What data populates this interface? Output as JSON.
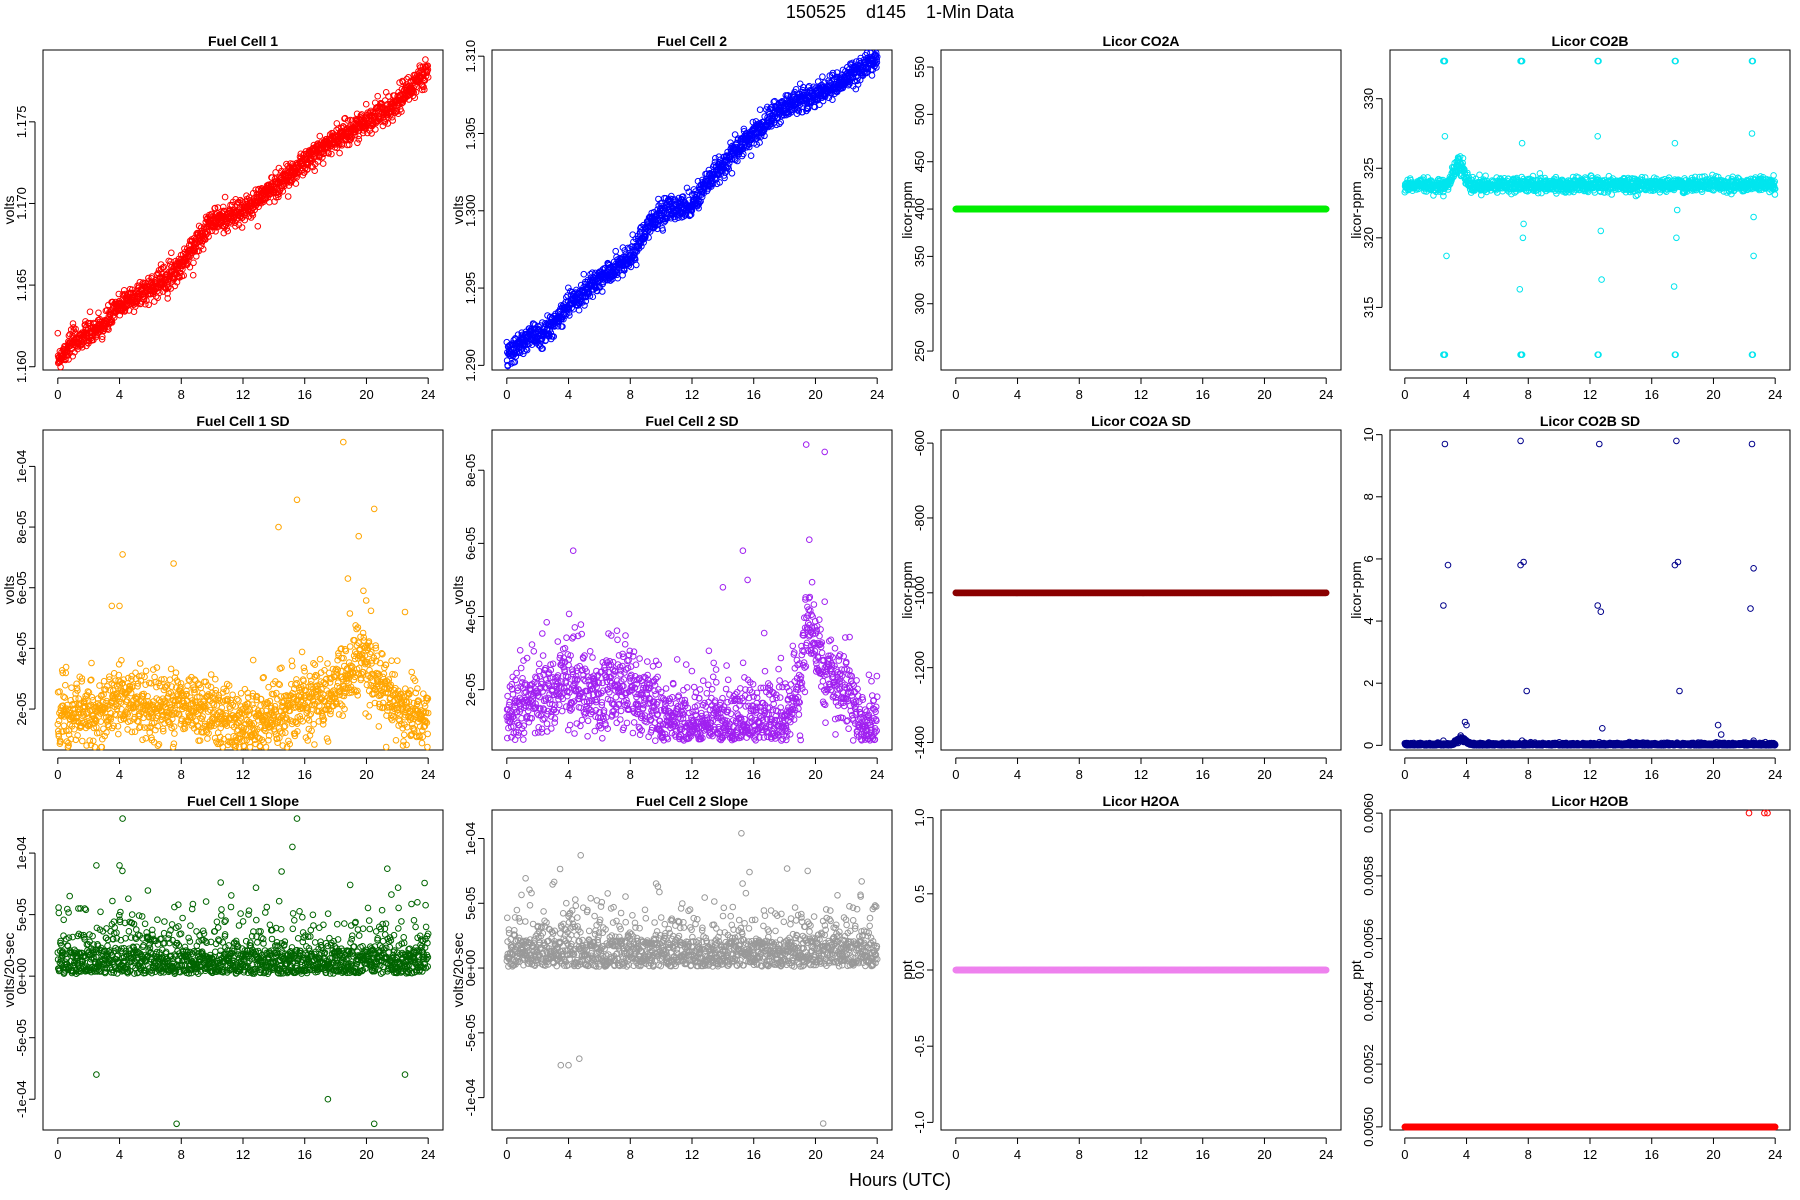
{
  "figure": {
    "title": "150525    d145    1-Min Data",
    "xlabel": "Hours (UTC)"
  },
  "chart_data": [
    {
      "type": "scatter",
      "title": "Fuel Cell 1",
      "ylabel": "volts",
      "color": "#ff0000",
      "xlim": [
        0,
        24
      ],
      "ylim": [
        1.1598,
        1.1794
      ],
      "xticks": [
        0,
        4,
        8,
        12,
        16,
        20,
        24
      ],
      "yticks": [
        1.16,
        1.165,
        1.17,
        1.175
      ],
      "ytick_labels": [
        "1.160",
        "1.165",
        "1.170",
        "1.175"
      ],
      "series": [
        {
          "pattern": "trend",
          "x": [
            0,
            1,
            3,
            4,
            6,
            8,
            9.8,
            12,
            14,
            16,
            18,
            20,
            22,
            24
          ],
          "y": [
            1.1605,
            1.1615,
            1.1625,
            1.1638,
            1.1648,
            1.1662,
            1.1688,
            1.1695,
            1.171,
            1.1725,
            1.174,
            1.175,
            1.1762,
            1.1782
          ],
          "noise": 0.0004,
          "n": 1440
        }
      ]
    },
    {
      "type": "scatter",
      "title": "Fuel Cell 2",
      "ylabel": "volts",
      "color": "#0000ff",
      "xlim": [
        0,
        24
      ],
      "ylim": [
        1.2897,
        1.3104
      ],
      "xticks": [
        0,
        4,
        8,
        12,
        16,
        20,
        24
      ],
      "yticks": [
        1.29,
        1.295,
        1.3,
        1.305,
        1.31
      ],
      "ytick_labels": [
        "1.290",
        "1.295",
        "1.300",
        "1.305",
        "1.310"
      ],
      "series": [
        {
          "pattern": "trend",
          "x": [
            0,
            1,
            3,
            4,
            6,
            8,
            9.8,
            12,
            14,
            16,
            18,
            20,
            22,
            24
          ],
          "y": [
            1.2905,
            1.2915,
            1.2925,
            1.294,
            1.2955,
            1.297,
            1.2998,
            1.3005,
            1.303,
            1.305,
            1.3068,
            1.3075,
            1.3085,
            1.3098
          ],
          "noise": 0.0004,
          "n": 1440
        }
      ]
    },
    {
      "type": "scatter",
      "title": "Licor CO2A",
      "ylabel": "licor-ppm",
      "color": "#00ee00",
      "xlim": [
        0,
        24
      ],
      "ylim": [
        230,
        568
      ],
      "xticks": [
        0,
        4,
        8,
        12,
        16,
        20,
        24
      ],
      "yticks": [
        250,
        300,
        350,
        400,
        450,
        500,
        550
      ],
      "ytick_labels": [
        "250",
        "300",
        "350",
        "400",
        "450",
        "500",
        "550"
      ],
      "series": [
        {
          "pattern": "constant",
          "value": 400,
          "n": 1440
        }
      ]
    },
    {
      "type": "scatter",
      "title": "Licor CO2B",
      "ylabel": "licor-ppm",
      "color": "#00e5ee",
      "xlim": [
        0,
        24
      ],
      "ylim": [
        310.5,
        333.5
      ],
      "xticks": [
        0,
        4,
        8,
        12,
        16,
        20,
        24
      ],
      "yticks": [
        315,
        320,
        325,
        330
      ],
      "ytick_labels": [
        "315",
        "320",
        "325",
        "330"
      ],
      "series": [
        {
          "pattern": "baseline_outliers",
          "base": 323.8,
          "noise": 0.25,
          "n": 1440,
          "bump": {
            "from": 2.8,
            "to": 4.2,
            "peak": 325.8
          },
          "outliers": [
            [
              2.5,
              332.7
            ],
            [
              2.55,
              332.7
            ],
            [
              2.6,
              332.7
            ],
            [
              2.5,
              311.6
            ],
            [
              2.55,
              311.6
            ],
            [
              2.6,
              311.6
            ],
            [
              2.6,
              327.3
            ],
            [
              2.7,
              318.7
            ],
            [
              2.5,
              323.0
            ],
            [
              7.5,
              332.7
            ],
            [
              7.55,
              332.7
            ],
            [
              7.6,
              332.7
            ],
            [
              7.5,
              311.6
            ],
            [
              7.55,
              311.6
            ],
            [
              7.6,
              311.6
            ],
            [
              7.6,
              326.8
            ],
            [
              7.65,
              320.0
            ],
            [
              7.7,
              321.0
            ],
            [
              7.45,
              316.3
            ],
            [
              12.5,
              332.7
            ],
            [
              12.55,
              332.7
            ],
            [
              12.5,
              311.6
            ],
            [
              12.55,
              311.6
            ],
            [
              12.5,
              327.3
            ],
            [
              12.7,
              320.5
            ],
            [
              12.75,
              317.0
            ],
            [
              17.5,
              332.7
            ],
            [
              17.55,
              332.7
            ],
            [
              17.5,
              311.6
            ],
            [
              17.55,
              311.6
            ],
            [
              17.5,
              326.8
            ],
            [
              17.6,
              320.0
            ],
            [
              17.45,
              316.5
            ],
            [
              17.65,
              322.0
            ],
            [
              22.5,
              332.7
            ],
            [
              22.55,
              332.7
            ],
            [
              22.5,
              311.6
            ],
            [
              22.55,
              311.6
            ],
            [
              22.5,
              327.5
            ],
            [
              22.6,
              318.7
            ],
            [
              22.6,
              321.5
            ]
          ]
        }
      ]
    },
    {
      "type": "scatter",
      "title": "Fuel Cell 1 SD",
      "ylabel": "volts",
      "color": "#ffa500",
      "xlim": [
        0,
        24
      ],
      "ylim": [
        6.5e-06,
        0.000112
      ],
      "xticks": [
        0,
        4,
        8,
        12,
        16,
        20,
        24
      ],
      "yticks": [
        2e-05,
        4e-05,
        6e-05,
        8e-05,
        0.0001
      ],
      "ytick_labels": [
        "2e-05",
        "4e-05",
        "6e-05",
        "8e-05",
        "1e-04"
      ],
      "series": [
        {
          "pattern": "noisy_profile",
          "n": 1440,
          "noise": 5.5e-06,
          "x": [
            0,
            3,
            4,
            6,
            8,
            10,
            12,
            14,
            16,
            18,
            19.5,
            20.5,
            22,
            24
          ],
          "y": [
            1.7e-05,
            2e-05,
            2.4e-05,
            2e-05,
            2.2e-05,
            1.8e-05,
            1.5e-05,
            1.7e-05,
            2.1e-05,
            2.6e-05,
            3.8e-05,
            3.2e-05,
            2.2e-05,
            1.6e-05
          ],
          "outliers": [
            [
              18.5,
              0.000108
            ],
            [
              15.5,
              8.9e-05
            ],
            [
              20.5,
              8.6e-05
            ],
            [
              14.3,
              8e-05
            ],
            [
              19.5,
              7.7e-05
            ],
            [
              4.2,
              7.1e-05
            ],
            [
              7.5,
              6.8e-05
            ],
            [
              18.8,
              6.3e-05
            ],
            [
              19.8,
              5.9e-05
            ],
            [
              3.5,
              5.4e-05
            ],
            [
              4.0,
              5.4e-05
            ],
            [
              22.5,
              5.2e-05
            ]
          ]
        }
      ]
    },
    {
      "type": "scatter",
      "title": "Fuel Cell 2 SD",
      "ylabel": "volts",
      "color": "#a020f0",
      "xlim": [
        0,
        24
      ],
      "ylim": [
        3.5e-06,
        9.1e-05
      ],
      "xticks": [
        0,
        4,
        8,
        12,
        16,
        20,
        24
      ],
      "yticks": [
        2e-05,
        4e-05,
        6e-05,
        8e-05
      ],
      "ytick_labels": [
        "2e-05",
        "4e-05",
        "6e-05",
        "8e-05"
      ],
      "series": [
        {
          "pattern": "noisy_profile",
          "n": 1440,
          "noise": 5.5e-06,
          "x": [
            0,
            2,
            4,
            6,
            7,
            8,
            10,
            12,
            14,
            16,
            18,
            19,
            19.5,
            20.5,
            22,
            23,
            24
          ],
          "y": [
            1.5e-05,
            1.8e-05,
            2.2e-05,
            1.8e-05,
            2.2e-05,
            2e-05,
            1.3e-05,
            1.1e-05,
            1.2e-05,
            1.1e-05,
            1.2e-05,
            2e-05,
            4e-05,
            2.8e-05,
            1.8e-05,
            1.2e-05,
            1e-05
          ],
          "outliers": [
            [
              19.4,
              8.7e-05
            ],
            [
              20.6,
              8.5e-05
            ],
            [
              19.6,
              6.1e-05
            ],
            [
              4.3,
              5.8e-05
            ],
            [
              15.3,
              5.8e-05
            ],
            [
              15.6,
              5e-05
            ],
            [
              14.0,
              4.8e-05
            ]
          ]
        }
      ]
    },
    {
      "type": "scatter",
      "title": "Licor CO2A SD",
      "ylabel": "licor-ppm",
      "color": "#8b0000",
      "xlim": [
        0,
        24
      ],
      "ylim": [
        -1420,
        -565
      ],
      "xticks": [
        0,
        4,
        8,
        12,
        16,
        20,
        24
      ],
      "yticks": [
        -1400,
        -1200,
        -1000,
        -800,
        -600
      ],
      "ytick_labels": [
        "-1400",
        "-1200",
        "-1000",
        "-800",
        "-600"
      ],
      "series": [
        {
          "pattern": "constant",
          "value": -1000,
          "n": 1440
        }
      ]
    },
    {
      "type": "scatter",
      "title": "Licor CO2B SD",
      "ylabel": "licor-ppm",
      "color": "#00008b",
      "xlim": [
        0,
        24
      ],
      "ylim": [
        -0.15,
        10.15
      ],
      "xticks": [
        0,
        4,
        8,
        12,
        16,
        20,
        24
      ],
      "yticks": [
        0,
        2,
        4,
        6,
        8,
        10
      ],
      "ytick_labels": [
        "0",
        "2",
        "4",
        "6",
        "8",
        "10"
      ],
      "series": [
        {
          "pattern": "baseline_outliers",
          "base": 0.03,
          "noise": 0.025,
          "n": 1440,
          "positive": true,
          "bump": {
            "from": 3.0,
            "to": 4.3,
            "peak": 0.25
          },
          "outliers": [
            [
              2.6,
              9.7
            ],
            [
              2.5,
              4.5
            ],
            [
              2.8,
              5.8
            ],
            [
              2.5,
              0.15
            ],
            [
              7.5,
              9.8
            ],
            [
              7.5,
              5.8
            ],
            [
              7.7,
              5.9
            ],
            [
              7.9,
              1.75
            ],
            [
              7.6,
              0.15
            ],
            [
              12.6,
              9.7
            ],
            [
              12.5,
              4.5
            ],
            [
              12.7,
              4.3
            ],
            [
              12.8,
              0.55
            ],
            [
              12.6,
              0.1
            ],
            [
              17.6,
              9.8
            ],
            [
              17.5,
              5.8
            ],
            [
              17.7,
              5.9
            ],
            [
              17.8,
              1.75
            ],
            [
              22.5,
              9.7
            ],
            [
              22.4,
              4.4
            ],
            [
              22.6,
              5.7
            ],
            [
              20.3,
              0.65
            ],
            [
              20.5,
              0.35
            ],
            [
              22.6,
              0.15
            ],
            [
              3.9,
              0.75
            ],
            [
              4.0,
              0.65
            ]
          ]
        }
      ]
    },
    {
      "type": "scatter",
      "title": "Fuel Cell 1 Slope",
      "ylabel": "volts/20-sec",
      "color": "#006400",
      "xlim": [
        0,
        24
      ],
      "ylim": [
        -0.000125,
        0.000135
      ],
      "xticks": [
        0,
        4,
        8,
        12,
        16,
        20,
        24
      ],
      "yticks": [
        -0.0001,
        -5e-05,
        0,
        5e-05,
        0.0001
      ],
      "ytick_labels": [
        "-1e-04",
        "-5e-05",
        "0e+00",
        "5e-05",
        "1e-04"
      ],
      "series": [
        {
          "pattern": "noisy_profile",
          "n": 1440,
          "noise": 1.9e-05,
          "x": [
            0,
            4,
            8,
            12,
            16,
            20,
            24
          ],
          "y": [
            5e-06,
            1.2e-05,
            8e-06,
            5e-06,
            3e-06,
            5e-06,
            8e-06
          ],
          "outliers": [
            [
              4.2,
              0.000128
            ],
            [
              15.5,
              0.000128
            ],
            [
              15.2,
              0.000105
            ],
            [
              14.5,
              8.5e-05
            ],
            [
              2.5,
              9e-05
            ],
            [
              4.0,
              9e-05
            ],
            [
              7.7,
              -0.00012
            ],
            [
              20.5,
              -0.00012
            ],
            [
              17.5,
              -0.0001
            ],
            [
              2.5,
              -8e-05
            ],
            [
              22.5,
              -8e-05
            ]
          ]
        }
      ]
    },
    {
      "type": "scatter",
      "title": "Fuel Cell 2 Slope",
      "ylabel": "volts/20-sec",
      "color": "#999999",
      "xlim": [
        0,
        24
      ],
      "ylim": [
        -0.000125,
        0.000122
      ],
      "xticks": [
        0,
        4,
        8,
        12,
        16,
        20,
        24
      ],
      "yticks": [
        -0.0001,
        -5e-05,
        0,
        5e-05,
        0.0001
      ],
      "ytick_labels": [
        "-1e-04",
        "-5e-05",
        "0e+00",
        "5e-05",
        "1e-04"
      ],
      "series": [
        {
          "pattern": "noisy_profile",
          "n": 1440,
          "noise": 2e-05,
          "x": [
            0,
            4,
            8,
            12,
            16,
            20,
            24
          ],
          "y": [
            3e-06,
            8e-06,
            6e-06,
            4e-06,
            2e-06,
            5e-06,
            6e-06
          ],
          "outliers": [
            [
              15.2,
              0.000104
            ],
            [
              20.5,
              -0.00012
            ],
            [
              19.5,
              7.5e-05
            ],
            [
              4.0,
              -7.5e-05
            ],
            [
              3.5,
              -7.5e-05
            ],
            [
              4.7,
              -7e-05
            ]
          ]
        }
      ]
    },
    {
      "type": "scatter",
      "title": "Licor H2OA",
      "ylabel": "ppt",
      "color": "#ee82ee",
      "xlim": [
        0,
        24
      ],
      "ylim": [
        -1.05,
        1.05
      ],
      "xticks": [
        0,
        4,
        8,
        12,
        16,
        20,
        24
      ],
      "yticks": [
        -1.0,
        -0.5,
        0.0,
        0.5,
        1.0
      ],
      "ytick_labels": [
        "-1.0",
        "-0.5",
        "0.0",
        "0.5",
        "1.0"
      ],
      "series": [
        {
          "pattern": "constant",
          "value": 0,
          "n": 1440
        }
      ]
    },
    {
      "type": "scatter",
      "title": "Licor H2OB",
      "ylabel": "ppt",
      "color": "#ff0000",
      "xlim": [
        0,
        24
      ],
      "ylim": [
        0.00499,
        0.00601
      ],
      "xticks": [
        0,
        4,
        8,
        12,
        16,
        20,
        24
      ],
      "yticks": [
        0.005,
        0.0052,
        0.0054,
        0.0056,
        0.0058,
        0.006
      ],
      "ytick_labels": [
        "0.0050",
        "0.0052",
        "0.0054",
        "0.0056",
        "0.0058",
        "0.0060"
      ],
      "series": [
        {
          "pattern": "constant_outliers",
          "value": 0.005,
          "n": 1440,
          "outliers": [
            [
              22.3,
              0.006
            ],
            [
              23.3,
              0.006
            ],
            [
              23.5,
              0.006
            ]
          ]
        }
      ]
    }
  ]
}
